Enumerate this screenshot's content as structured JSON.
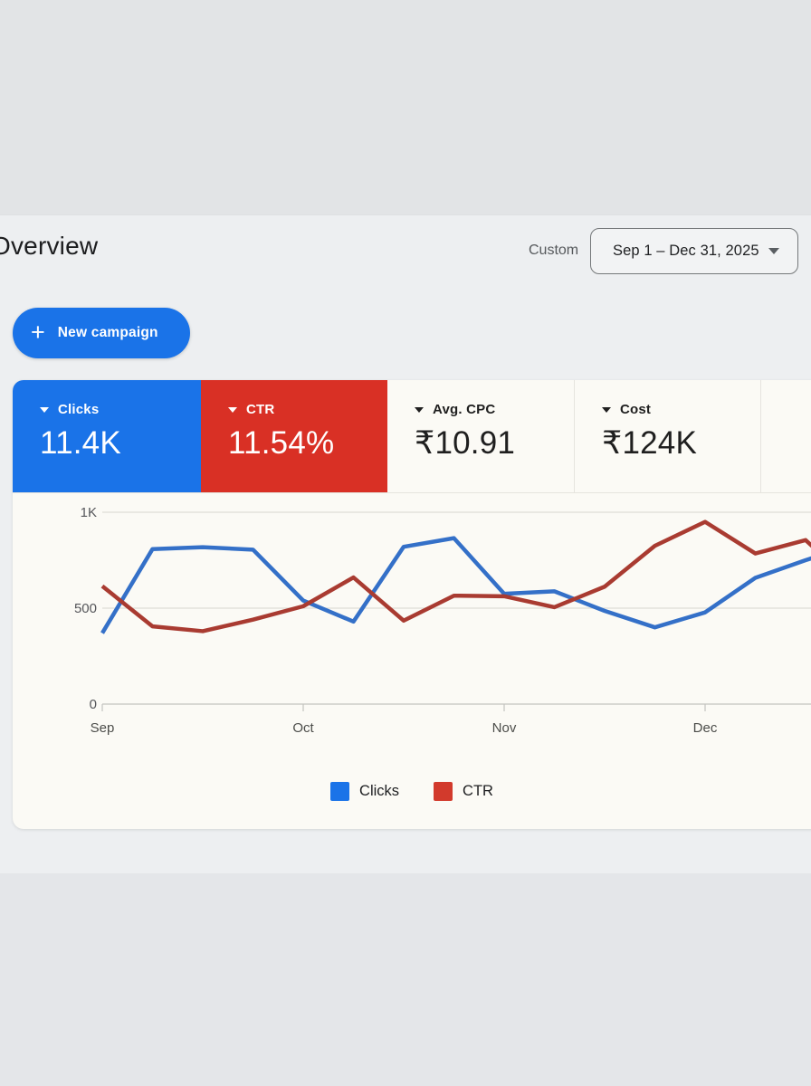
{
  "page": {
    "title": "Overview"
  },
  "header": {
    "date_mode": "Custom",
    "date_range": "Sep 1 – Dec 31, 2025"
  },
  "toolbar": {
    "plus": "+",
    "new_campaign_label": "New campaign"
  },
  "colors": {
    "accent_blue": "#1a73e8",
    "accent_red": "#d93025",
    "line_blue": "#3470c8",
    "line_red": "#a93b31",
    "panel_bg": "#fbfaf5"
  },
  "scorecards": [
    {
      "label": "Clicks",
      "value": "11.4K",
      "bg": "#1a73e8",
      "fg": "#ffffff"
    },
    {
      "label": "CTR",
      "value": "11.54%",
      "bg": "#d93025",
      "fg": "#ffffff"
    },
    {
      "label": "Avg. CPC",
      "value": "₹10.91",
      "bg": "",
      "fg": "#1f1f1f"
    },
    {
      "label": "Cost",
      "value": "₹124K",
      "bg": "",
      "fg": "#1f1f1f"
    },
    {
      "label": "",
      "value": "",
      "bg": "",
      "fg": ""
    }
  ],
  "chart_data": {
    "type": "line",
    "title": "",
    "xlabel": "",
    "ylabel": "",
    "x_unit": "weeks from Sep 1",
    "x_tick_labels": [
      "Sep",
      "Oct",
      "Nov",
      "Dec"
    ],
    "x_tick_weeks": [
      0,
      4,
      8,
      12
    ],
    "y_ticks": [
      {
        "label": "0",
        "value": 0
      },
      {
        "label": "500",
        "value": 500
      },
      {
        "label": "1K",
        "value": 1000
      }
    ],
    "ylim": [
      0,
      1060
    ],
    "grid": true,
    "legend_position": "bottom",
    "series": [
      {
        "name": "Clicks",
        "color": "#3470c8",
        "legend_color": "#1a73e8",
        "values": [
          370,
          808,
          818,
          805,
          540,
          430,
          820,
          865,
          575,
          588,
          486,
          400,
          478,
          658,
          750
        ],
        "value_at_right_edge": 762
      },
      {
        "name": "CTR",
        "color": "#a93b31",
        "legend_color": "#d23a2c",
        "values": [
          615,
          405,
          380,
          440,
          510,
          660,
          435,
          565,
          562,
          505,
          612,
          825,
          950,
          785,
          855
        ],
        "value_at_right_edge": 820
      }
    ],
    "legend": [
      {
        "label": "Clicks",
        "color": "#1a73e8"
      },
      {
        "label": "CTR",
        "color": "#d23a2c"
      }
    ]
  }
}
